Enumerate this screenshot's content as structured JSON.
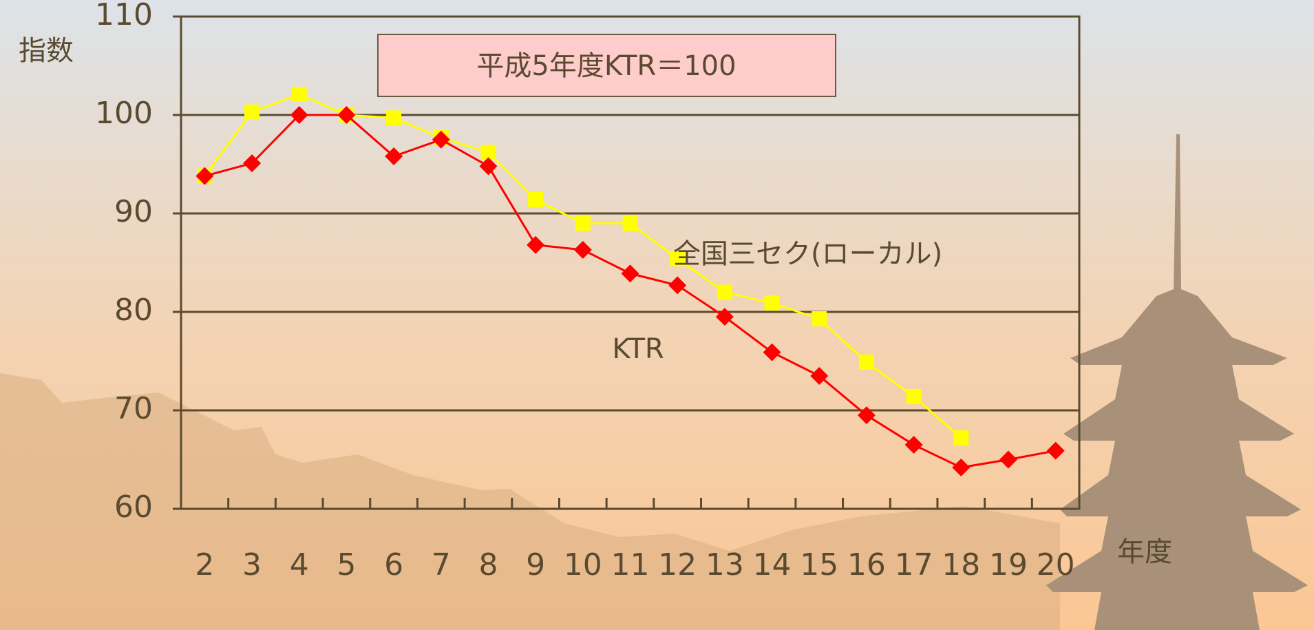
{
  "chart_data": {
    "type": "line",
    "annotation": "平成5年度KTR＝100",
    "y_label": "指数",
    "x_label": "年度",
    "categories": [
      "2",
      "3",
      "4",
      "5",
      "6",
      "7",
      "8",
      "9",
      "10",
      "11",
      "12",
      "13",
      "14",
      "15",
      "16",
      "17",
      "18",
      "19",
      "20"
    ],
    "series": [
      {
        "name": "全国三セク(ローカル)",
        "color": "#ffff00",
        "marker": "square",
        "values": [
          93.8,
          100.3,
          102.1,
          100.0,
          99.7,
          97.7,
          96.2,
          91.4,
          89.0,
          89.0,
          85.4,
          82.0,
          80.9,
          79.3,
          74.9,
          71.4,
          67.2,
          null,
          null
        ]
      },
      {
        "name": "KTR",
        "color": "#ff0000",
        "marker": "diamond",
        "values": [
          93.8,
          95.1,
          100,
          100,
          95.8,
          97.5,
          94.8,
          86.8,
          86.3,
          83.9,
          82.7,
          79.5,
          75.9,
          73.5,
          69.5,
          66.5,
          64.2,
          65.0,
          65.9
        ]
      }
    ],
    "ylim": [
      60,
      110
    ],
    "yticks": [
      60,
      70,
      80,
      90,
      100,
      110
    ],
    "grid": true
  }
}
